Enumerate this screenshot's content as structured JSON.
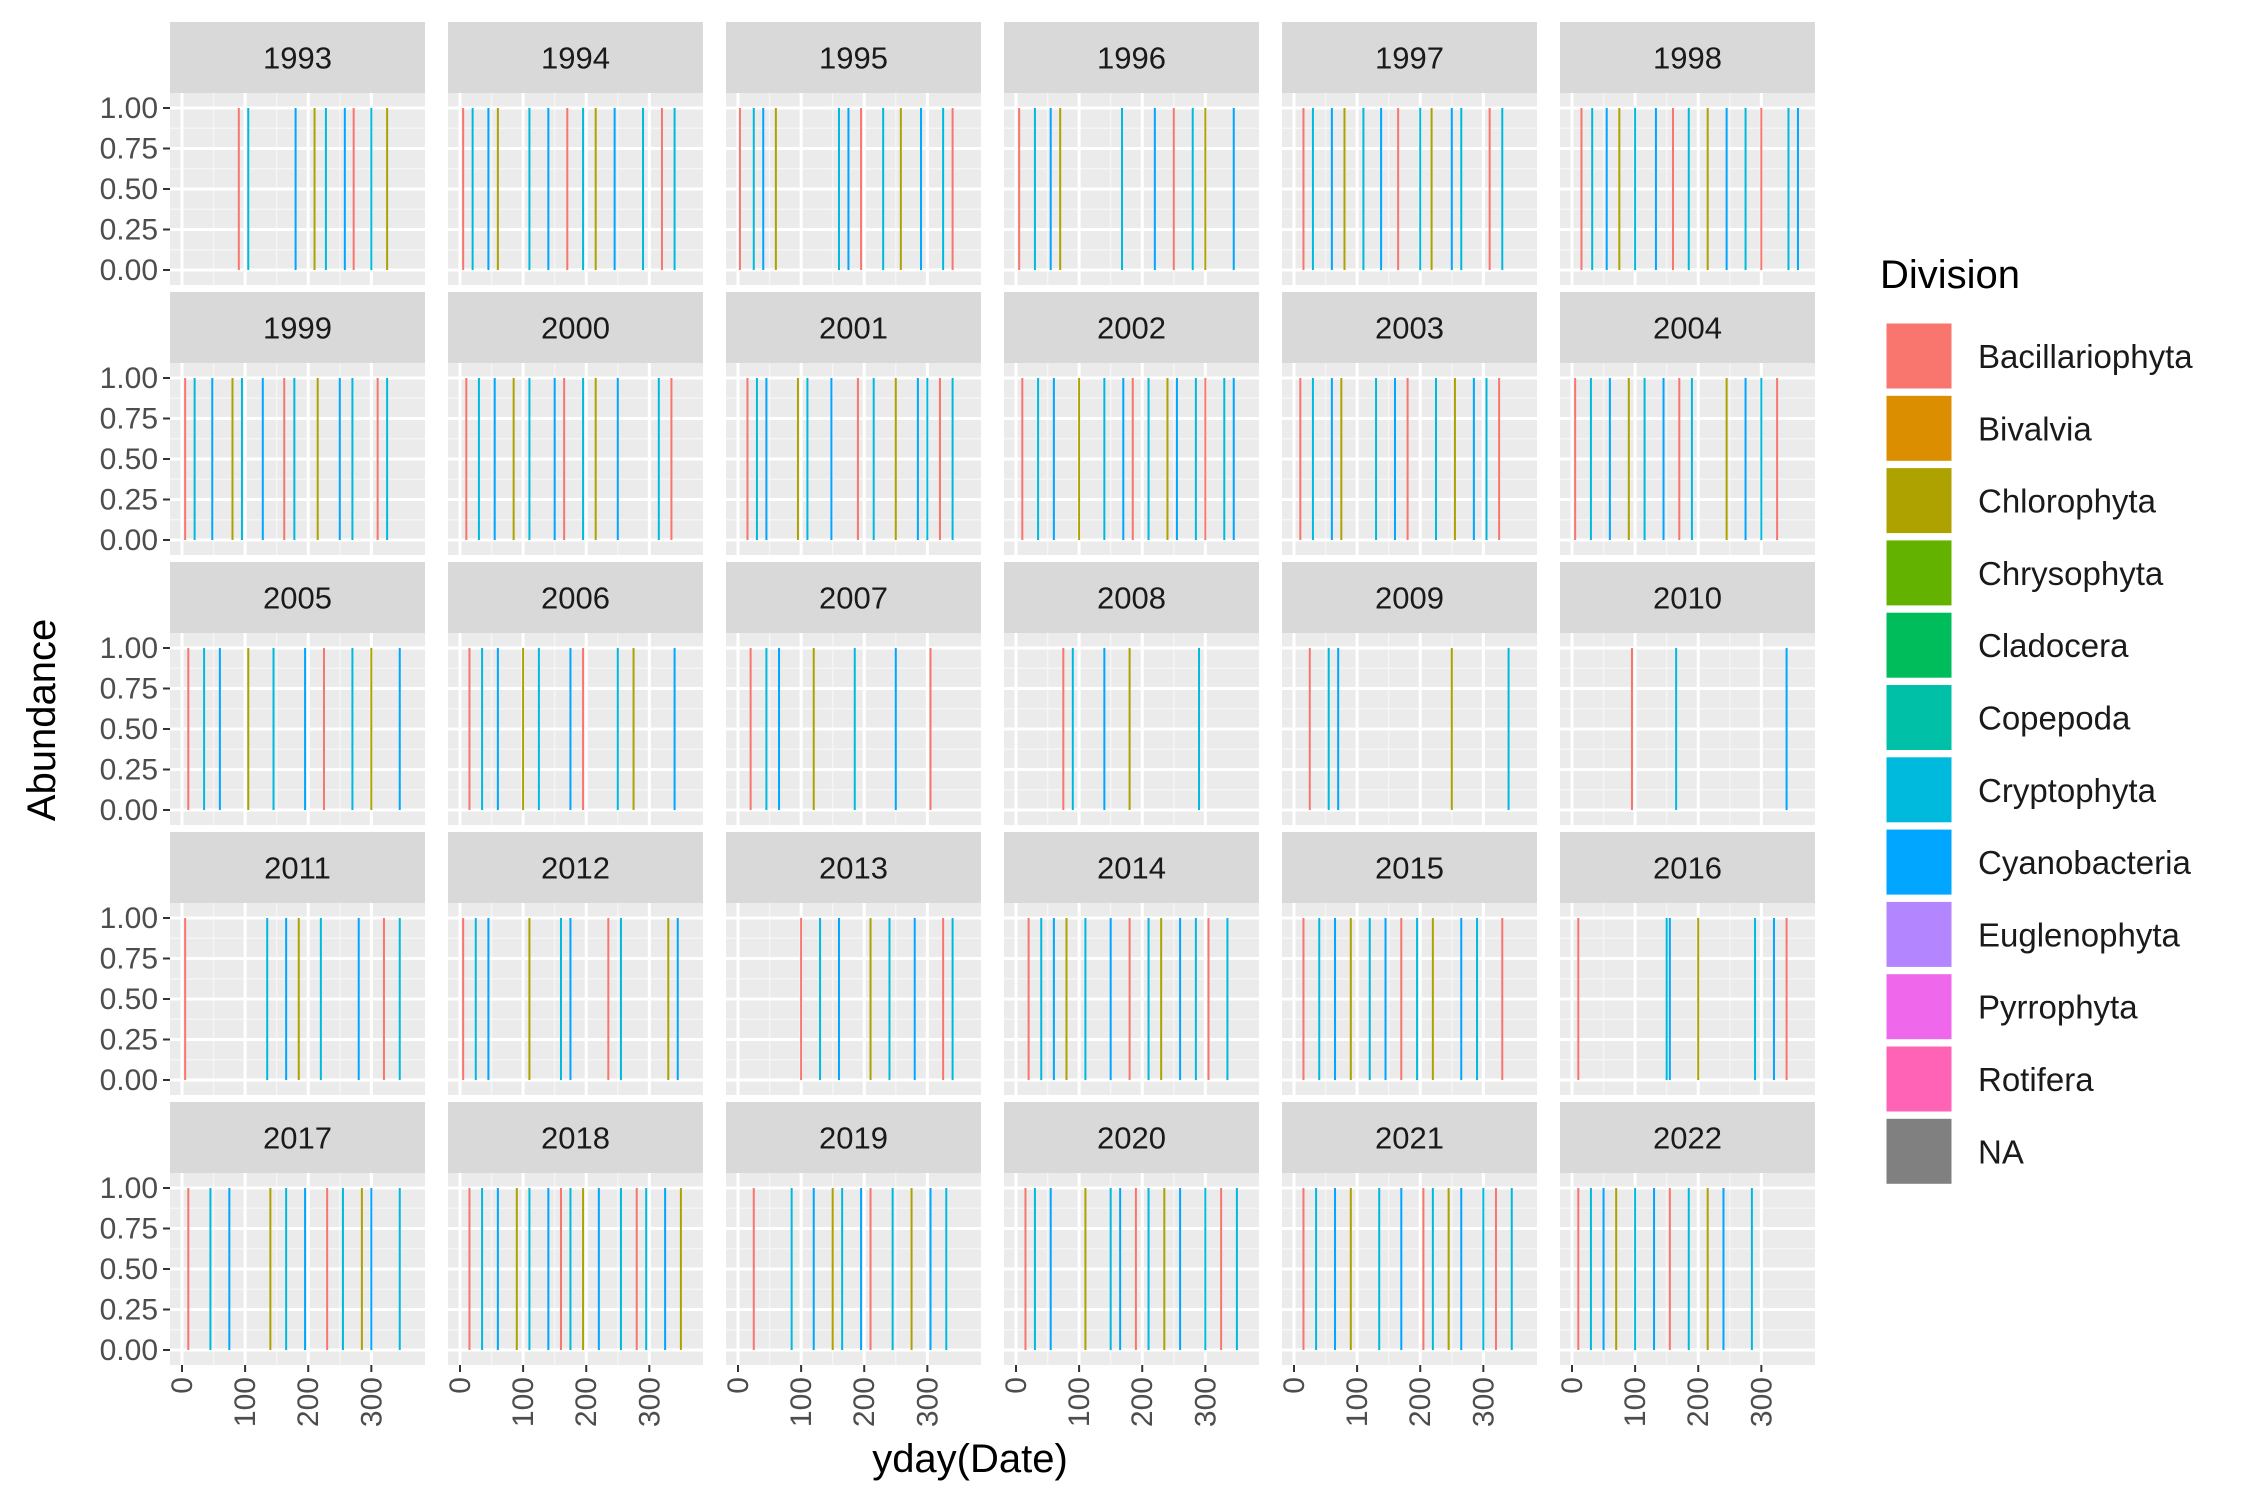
{
  "chart_data": {
    "type": "bar",
    "faceted_by": "year",
    "xlabel": "yday(Date)",
    "ylabel": "Abundance",
    "xlim": [
      0,
      366
    ],
    "ylim": [
      0,
      1
    ],
    "x_ticks": [
      0,
      100,
      200,
      300
    ],
    "y_ticks": [
      "0.00",
      "0.25",
      "0.50",
      "0.75",
      "1.00"
    ],
    "grid": true,
    "legend": {
      "title": "Division",
      "position": "right",
      "entries": [
        {
          "name": "Bacillariophyta",
          "color": "#F8766D"
        },
        {
          "name": "Bivalvia",
          "color": "#DB8E00"
        },
        {
          "name": "Chlorophyta",
          "color": "#AEA200"
        },
        {
          "name": "Chrysophyta",
          "color": "#64B200"
        },
        {
          "name": "Cladocera",
          "color": "#00BD5C"
        },
        {
          "name": "Copepoda",
          "color": "#00C1A7"
        },
        {
          "name": "Cryptophyta",
          "color": "#00BADE"
        },
        {
          "name": "Cyanobacteria",
          "color": "#00A6FF"
        },
        {
          "name": "Euglenophyta",
          "color": "#B385FF"
        },
        {
          "name": "Pyrrophyta",
          "color": "#EF67EB"
        },
        {
          "name": "Rotifera",
          "color": "#FF63B6"
        },
        {
          "name": "NA",
          "color": "#808080"
        }
      ]
    },
    "panels": [
      {
        "year": "1993",
        "sample_days": [
          90,
          105,
          180,
          210,
          228,
          258,
          272,
          300,
          325
        ]
      },
      {
        "year": "1994",
        "sample_days": [
          5,
          20,
          45,
          60,
          110,
          140,
          170,
          195,
          215,
          245,
          290,
          320,
          340
        ]
      },
      {
        "year": "1995",
        "sample_days": [
          3,
          25,
          40,
          60,
          160,
          175,
          195,
          230,
          258,
          290,
          325,
          340
        ]
      },
      {
        "year": "1996",
        "sample_days": [
          5,
          30,
          55,
          70,
          168,
          220,
          250,
          280,
          300,
          345
        ]
      },
      {
        "year": "1997",
        "sample_days": [
          15,
          30,
          60,
          80,
          110,
          138,
          165,
          200,
          218,
          250,
          265,
          310,
          330
        ]
      },
      {
        "year": "1998",
        "sample_days": [
          15,
          32,
          55,
          75,
          100,
          133,
          160,
          185,
          215,
          245,
          275,
          300,
          343,
          358
        ]
      },
      {
        "year": "1999",
        "sample_days": [
          5,
          20,
          48,
          80,
          95,
          128,
          162,
          178,
          215,
          250,
          270,
          310,
          325
        ]
      },
      {
        "year": "2000",
        "sample_days": [
          10,
          30,
          55,
          85,
          110,
          150,
          165,
          195,
          215,
          250,
          315,
          335
        ]
      },
      {
        "year": "2001",
        "sample_days": [
          15,
          30,
          45,
          95,
          110,
          148,
          190,
          215,
          250,
          285,
          300,
          320,
          340
        ]
      },
      {
        "year": "2002",
        "sample_days": [
          10,
          35,
          60,
          100,
          140,
          170,
          185,
          210,
          240,
          255,
          285,
          300,
          330,
          345
        ]
      },
      {
        "year": "2003",
        "sample_days": [
          10,
          30,
          60,
          75,
          130,
          160,
          180,
          225,
          255,
          285,
          305,
          325
        ]
      },
      {
        "year": "2004",
        "sample_days": [
          5,
          30,
          60,
          90,
          115,
          145,
          170,
          190,
          245,
          275,
          300,
          325
        ]
      },
      {
        "year": "2005",
        "sample_days": [
          10,
          35,
          60,
          105,
          145,
          195,
          225,
          270,
          300,
          345
        ]
      },
      {
        "year": "2006",
        "sample_days": [
          15,
          35,
          60,
          100,
          125,
          175,
          195,
          250,
          275,
          340
        ]
      },
      {
        "year": "2007",
        "sample_days": [
          20,
          45,
          65,
          120,
          185,
          250,
          305
        ]
      },
      {
        "year": "2008",
        "sample_days": [
          75,
          90,
          140,
          180,
          290
        ]
      },
      {
        "year": "2009",
        "sample_days": [
          25,
          55,
          70,
          250,
          340
        ]
      },
      {
        "year": "2010",
        "sample_days": [
          95,
          165,
          340
        ]
      },
      {
        "year": "2011",
        "sample_days": [
          5,
          135,
          165,
          185,
          220,
          280,
          320,
          345
        ]
      },
      {
        "year": "2012",
        "sample_days": [
          5,
          25,
          45,
          110,
          160,
          175,
          235,
          255,
          330,
          345
        ]
      },
      {
        "year": "2013",
        "sample_days": [
          100,
          130,
          160,
          210,
          240,
          280,
          325,
          340
        ]
      },
      {
        "year": "2014",
        "sample_days": [
          20,
          40,
          60,
          80,
          110,
          150,
          180,
          210,
          230,
          260,
          285,
          305,
          335
        ]
      },
      {
        "year": "2015",
        "sample_days": [
          15,
          40,
          65,
          90,
          120,
          145,
          170,
          195,
          220,
          265,
          290,
          330
        ]
      },
      {
        "year": "2016",
        "sample_days": [
          10,
          150,
          155,
          200,
          290,
          320,
          340
        ]
      },
      {
        "year": "2017",
        "sample_days": [
          10,
          45,
          75,
          140,
          165,
          195,
          230,
          255,
          285,
          300,
          345
        ]
      },
      {
        "year": "2018",
        "sample_days": [
          15,
          35,
          60,
          90,
          110,
          140,
          160,
          175,
          195,
          220,
          255,
          280,
          295,
          325,
          350
        ]
      },
      {
        "year": "2019",
        "sample_days": [
          25,
          85,
          120,
          150,
          165,
          195,
          210,
          245,
          275,
          305,
          330
        ]
      },
      {
        "year": "2020",
        "sample_days": [
          15,
          30,
          55,
          110,
          150,
          165,
          190,
          210,
          235,
          260,
          300,
          325,
          350
        ]
      },
      {
        "year": "2021",
        "sample_days": [
          15,
          35,
          65,
          90,
          135,
          170,
          205,
          220,
          245,
          265,
          300,
          320,
          345
        ]
      },
      {
        "year": "2022",
        "sample_days": [
          10,
          30,
          50,
          70,
          100,
          130,
          155,
          185,
          215,
          240,
          285
        ]
      }
    ]
  }
}
